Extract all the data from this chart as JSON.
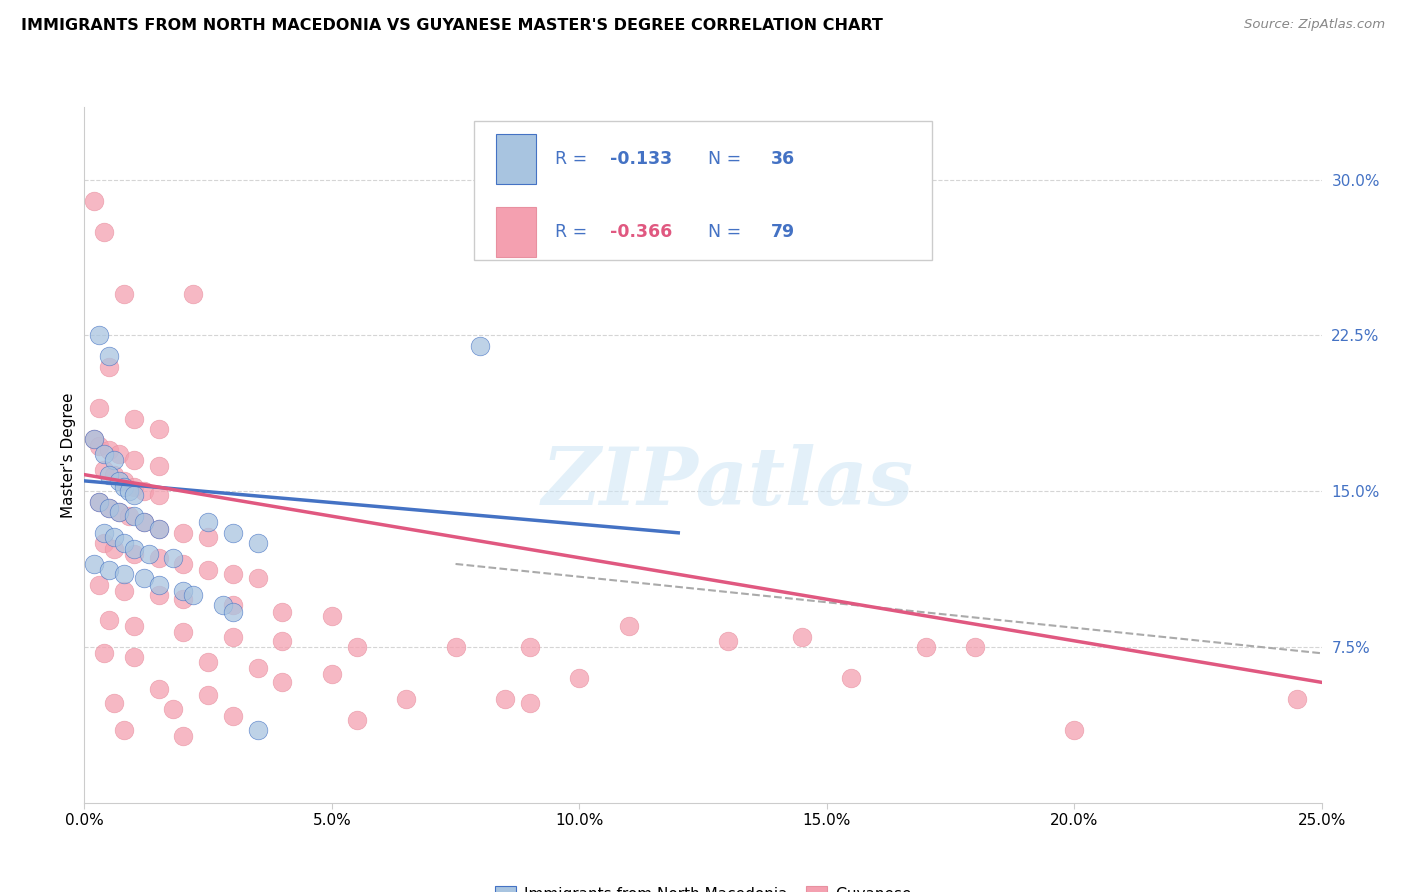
{
  "title": "IMMIGRANTS FROM NORTH MACEDONIA VS GUYANESE MASTER'S DEGREE CORRELATION CHART",
  "source": "Source: ZipAtlas.com",
  "ylabel": "Master's Degree",
  "color_blue": "#a8c4e0",
  "color_pink": "#f4a0b0",
  "line_blue": "#4472c4",
  "line_pink": "#e05880",
  "watermark": "ZIPatlas",
  "xlim": [
    0.0,
    25.0
  ],
  "ylim": [
    0.0,
    33.5
  ],
  "x_ticks": [
    0.0,
    5.0,
    10.0,
    15.0,
    20.0,
    25.0
  ],
  "y_ticks_right": [
    7.5,
    15.0,
    22.5,
    30.0
  ],
  "blue_points": [
    [
      0.3,
      22.5
    ],
    [
      0.5,
      21.5
    ],
    [
      0.2,
      17.5
    ],
    [
      0.4,
      16.8
    ],
    [
      0.6,
      16.5
    ],
    [
      0.5,
      15.8
    ],
    [
      0.7,
      15.5
    ],
    [
      0.8,
      15.2
    ],
    [
      0.9,
      15.0
    ],
    [
      1.0,
      14.8
    ],
    [
      0.3,
      14.5
    ],
    [
      0.5,
      14.2
    ],
    [
      0.7,
      14.0
    ],
    [
      1.0,
      13.8
    ],
    [
      1.2,
      13.5
    ],
    [
      1.5,
      13.2
    ],
    [
      0.4,
      13.0
    ],
    [
      0.6,
      12.8
    ],
    [
      0.8,
      12.5
    ],
    [
      1.0,
      12.2
    ],
    [
      1.3,
      12.0
    ],
    [
      1.8,
      11.8
    ],
    [
      2.5,
      13.5
    ],
    [
      3.0,
      13.0
    ],
    [
      0.2,
      11.5
    ],
    [
      0.5,
      11.2
    ],
    [
      0.8,
      11.0
    ],
    [
      1.2,
      10.8
    ],
    [
      1.5,
      10.5
    ],
    [
      2.0,
      10.2
    ],
    [
      2.2,
      10.0
    ],
    [
      3.5,
      12.5
    ],
    [
      8.0,
      22.0
    ],
    [
      2.8,
      9.5
    ],
    [
      3.0,
      9.2
    ],
    [
      3.5,
      3.5
    ]
  ],
  "pink_points": [
    [
      0.2,
      29.0
    ],
    [
      0.4,
      27.5
    ],
    [
      0.8,
      24.5
    ],
    [
      2.2,
      24.5
    ],
    [
      0.5,
      21.0
    ],
    [
      0.3,
      19.0
    ],
    [
      1.0,
      18.5
    ],
    [
      1.5,
      18.0
    ],
    [
      0.2,
      17.5
    ],
    [
      0.3,
      17.2
    ],
    [
      0.5,
      17.0
    ],
    [
      0.7,
      16.8
    ],
    [
      1.0,
      16.5
    ],
    [
      1.5,
      16.2
    ],
    [
      0.4,
      16.0
    ],
    [
      0.6,
      15.8
    ],
    [
      0.8,
      15.5
    ],
    [
      1.0,
      15.2
    ],
    [
      1.2,
      15.0
    ],
    [
      1.5,
      14.8
    ],
    [
      0.3,
      14.5
    ],
    [
      0.5,
      14.2
    ],
    [
      0.7,
      14.0
    ],
    [
      0.9,
      13.8
    ],
    [
      1.2,
      13.5
    ],
    [
      1.5,
      13.2
    ],
    [
      2.0,
      13.0
    ],
    [
      2.5,
      12.8
    ],
    [
      0.4,
      12.5
    ],
    [
      0.6,
      12.2
    ],
    [
      1.0,
      12.0
    ],
    [
      1.5,
      11.8
    ],
    [
      2.0,
      11.5
    ],
    [
      2.5,
      11.2
    ],
    [
      3.0,
      11.0
    ],
    [
      3.5,
      10.8
    ],
    [
      0.3,
      10.5
    ],
    [
      0.8,
      10.2
    ],
    [
      1.5,
      10.0
    ],
    [
      2.0,
      9.8
    ],
    [
      3.0,
      9.5
    ],
    [
      4.0,
      9.2
    ],
    [
      5.0,
      9.0
    ],
    [
      0.5,
      8.8
    ],
    [
      1.0,
      8.5
    ],
    [
      2.0,
      8.2
    ],
    [
      3.0,
      8.0
    ],
    [
      4.0,
      7.8
    ],
    [
      5.5,
      7.5
    ],
    [
      7.5,
      7.5
    ],
    [
      9.0,
      7.5
    ],
    [
      11.0,
      8.5
    ],
    [
      0.4,
      7.2
    ],
    [
      1.0,
      7.0
    ],
    [
      2.5,
      6.8
    ],
    [
      3.5,
      6.5
    ],
    [
      5.0,
      6.2
    ],
    [
      4.0,
      5.8
    ],
    [
      1.5,
      5.5
    ],
    [
      2.5,
      5.2
    ],
    [
      6.5,
      5.0
    ],
    [
      8.5,
      5.0
    ],
    [
      0.6,
      4.8
    ],
    [
      1.8,
      4.5
    ],
    [
      3.0,
      4.2
    ],
    [
      5.5,
      4.0
    ],
    [
      14.5,
      8.0
    ],
    [
      17.0,
      7.5
    ],
    [
      10.0,
      6.0
    ],
    [
      15.5,
      6.0
    ],
    [
      18.0,
      7.5
    ],
    [
      24.5,
      5.0
    ],
    [
      0.8,
      3.5
    ],
    [
      2.0,
      3.2
    ],
    [
      9.0,
      4.8
    ],
    [
      13.0,
      7.8
    ],
    [
      20.0,
      3.5
    ]
  ],
  "blue_line": [
    [
      0.0,
      15.5
    ],
    [
      12.0,
      13.0
    ]
  ],
  "pink_line": [
    [
      0.0,
      15.8
    ],
    [
      25.0,
      5.8
    ]
  ],
  "dashed_line": [
    [
      7.5,
      11.5
    ],
    [
      25.0,
      7.2
    ]
  ]
}
